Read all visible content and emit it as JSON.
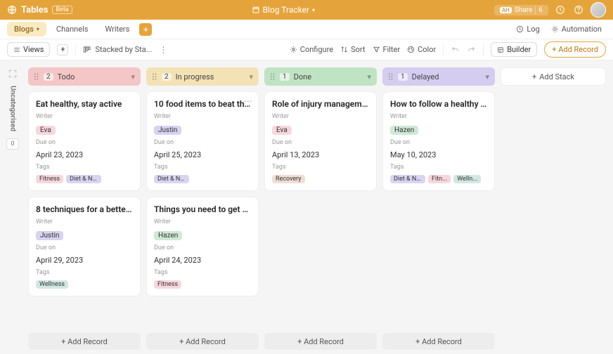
{
  "app": {
    "name": "Tables",
    "beta": "Beta"
  },
  "workspace": {
    "title": "Blog Tracker"
  },
  "share": {
    "label": "Share",
    "count": "6",
    "initials": "AH"
  },
  "tabs": {
    "items": [
      "Blogs",
      "Channels",
      "Writers"
    ],
    "active": 0
  },
  "rightTabs": {
    "log": "Log",
    "automation": "Automation"
  },
  "toolbar": {
    "views": "Views",
    "stacked": "Stacked by Sta...",
    "configure": "Configure",
    "sort": "Sort",
    "filter": "Filter",
    "color": "Color",
    "builder": "Builder",
    "addRecord": "+ Add Record"
  },
  "rail": {
    "label": "Uncategorised",
    "count": "0"
  },
  "colors": {
    "columns": {
      "todo": "#f5c6c6",
      "inprogress": "#f3e2b5",
      "done": "#bfe4c3",
      "delayed": "#d4cdf0"
    },
    "writers": {
      "Eva": "#f7d7dd",
      "Justin": "#d7d3f0",
      "Hazen": "#cfe9d6"
    },
    "tags": {
      "Fitness": "#f7d7dd",
      "Diet & Nutrition": "#d9d4f2",
      "Recovery": "#f0ded4",
      "Wellness": "#d2e7e2",
      "Welln...": "#d2e7e2",
      "Diet & Nutri...": "#d9d4f2",
      "Fitn...": "#f7d7dd"
    }
  },
  "columns": [
    {
      "key": "todo",
      "title": "Todo",
      "count": "2",
      "cards": [
        {
          "title": "Eat healthy, stay active",
          "writer": "Eva",
          "due": "April 23, 2023",
          "tags": [
            "Fitness",
            "Diet & Nutrition"
          ]
        },
        {
          "title": "8 techniques for a better ...",
          "writer": "Justin",
          "due": "April 29, 2023",
          "tags": [
            "Wellness"
          ]
        }
      ]
    },
    {
      "key": "inprogress",
      "title": "In progress",
      "count": "2",
      "cards": [
        {
          "title": "10 food items to beat the ...",
          "writer": "Justin",
          "due": "April 25, 2023",
          "tags": [
            "Diet & Nutrition"
          ],
          "more": true
        },
        {
          "title": "Things you need to get st...",
          "writer": "Hazen",
          "due": "April 24, 2023",
          "tags": [
            "Fitness"
          ]
        }
      ]
    },
    {
      "key": "done",
      "title": "Done",
      "count": "1",
      "cards": [
        {
          "title": "Role of injury managemen...",
          "writer": "Eva",
          "due": "April 13, 2023",
          "tags": [
            "Recovery"
          ]
        }
      ]
    },
    {
      "key": "delayed",
      "title": "Delayed",
      "count": "1",
      "cards": [
        {
          "title": "How to follow a healthy lif...",
          "writer": "Hazen",
          "due": "May 10, 2023",
          "tags": [
            "Diet & Nutri...",
            "Fitn...",
            "Welln..."
          ]
        }
      ]
    }
  ],
  "labels": {
    "writer": "Writer",
    "due": "Due on",
    "tags": "Tags",
    "addRecord": "+ Add Record",
    "addStack": "Add Stack"
  }
}
